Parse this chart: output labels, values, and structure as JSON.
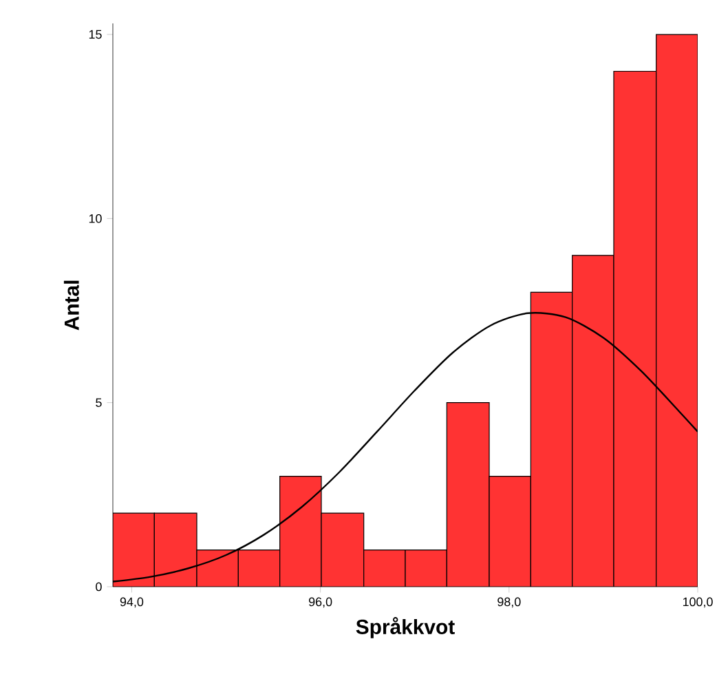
{
  "chart_data": {
    "type": "histogram",
    "xlabel": "Språkkvot",
    "ylabel": "Antal",
    "bins": [
      93.8,
      94.24,
      94.69,
      95.13,
      95.57,
      96.01,
      96.46,
      96.9,
      97.34,
      97.79,
      98.23,
      98.67,
      99.11,
      99.56,
      100.0
    ],
    "values": [
      2,
      2,
      1,
      1,
      3,
      2,
      1,
      1,
      5,
      3,
      8,
      9,
      14,
      15
    ],
    "color": "#ff3333",
    "series": [
      {
        "type": "line",
        "color": "#000000",
        "x": [
          93.8,
          94.2,
          94.6,
          95.0,
          95.4,
          95.8,
          96.2,
          96.6,
          97.0,
          97.4,
          97.8,
          98.2,
          98.6,
          99.0,
          99.4,
          99.8,
          100.0
        ],
        "values": [
          0.14,
          0.27,
          0.5,
          0.86,
          1.41,
          2.16,
          3.11,
          4.21,
          5.33,
          6.35,
          7.09,
          7.43,
          7.32,
          6.76,
          5.86,
          4.77,
          4.21
        ]
      }
    ],
    "xlim": [
      93.8,
      100.0
    ],
    "ylim": [
      0,
      15.3
    ],
    "xticks": [
      {
        "value": 94,
        "label": "94,0"
      },
      {
        "value": 96,
        "label": "96,0"
      },
      {
        "value": 98,
        "label": "98,0"
      },
      {
        "value": 100,
        "label": "100,0"
      }
    ],
    "yticks": [
      0,
      5,
      10,
      15
    ],
    "grid": false
  }
}
